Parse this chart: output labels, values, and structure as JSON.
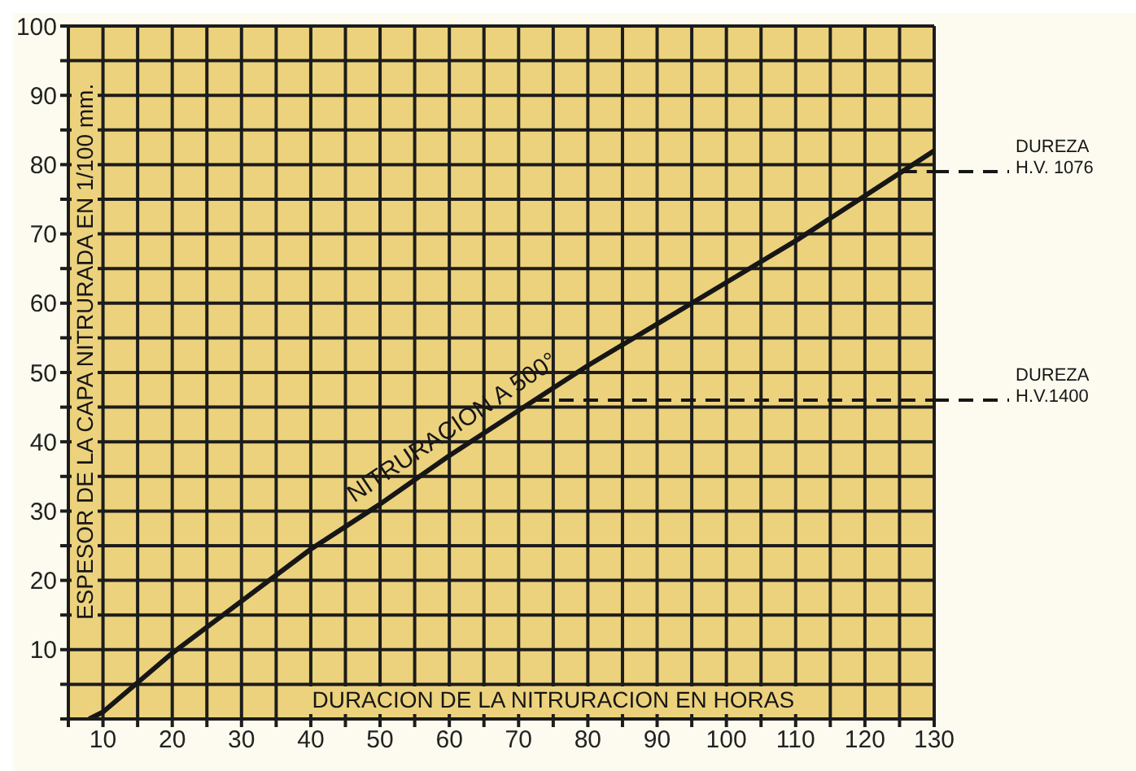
{
  "chart_data": {
    "type": "line",
    "xlabel": "DURACION DE LA NITRURACION EN HORAS",
    "ylabel": "ESPESOR DE LA CAPA NITRURADA EN 1/100 mm.",
    "x": [
      8,
      10,
      20,
      30,
      40,
      50,
      60,
      70,
      80,
      90,
      100,
      110,
      120,
      130
    ],
    "series": [
      {
        "name": "NITRURACION A 500°",
        "color": "#161616",
        "values": [
          0,
          1,
          9.5,
          17,
          24.5,
          31,
          38,
          44.5,
          51,
          57,
          63,
          69,
          75.5,
          82
        ]
      }
    ],
    "xlim": [
      5,
      130
    ],
    "ylim": [
      0,
      100
    ],
    "xticks": [
      {
        "value": 5,
        "label": null
      },
      10,
      {
        "value": 15,
        "label": null
      },
      20,
      {
        "value": 25,
        "label": null
      },
      30,
      {
        "value": 35,
        "label": null
      },
      40,
      {
        "value": 45,
        "label": null
      },
      50,
      {
        "value": 55,
        "label": null
      },
      60,
      {
        "value": 65,
        "label": null
      },
      70,
      {
        "value": 75,
        "label": null
      },
      80,
      {
        "value": 85,
        "label": null
      },
      90,
      {
        "value": 95,
        "label": null
      },
      100,
      {
        "value": 105,
        "label": null
      },
      110,
      {
        "value": 115,
        "label": null
      },
      120,
      {
        "value": 125,
        "label": null
      },
      130
    ],
    "yticks": [
      {
        "value": 0,
        "label": null
      },
      {
        "value": 5,
        "label": null
      },
      10,
      {
        "value": 15,
        "label": null
      },
      20,
      {
        "value": 25,
        "label": null
      },
      30,
      {
        "value": 35,
        "label": null
      },
      40,
      {
        "value": 45,
        "label": null
      },
      50,
      {
        "value": 55,
        "label": null
      },
      60,
      {
        "value": 65,
        "label": null
      },
      70,
      {
        "value": 75,
        "label": null
      },
      80,
      {
        "value": 85,
        "label": null
      },
      90,
      {
        "value": 95,
        "label": null
      },
      100
    ],
    "ref_lines": [
      {
        "axis": "y",
        "value": 79,
        "label": "DUREZA\nH.V. 1076",
        "color": "#161616",
        "line_style": "dashed"
      },
      {
        "axis": "y",
        "value": 46,
        "label": "DUREZA\nH.V.1400",
        "color": "#161616",
        "line_style": "dashed"
      }
    ],
    "grid": true,
    "legend": false,
    "marker": "none",
    "line_style": "solid"
  }
}
